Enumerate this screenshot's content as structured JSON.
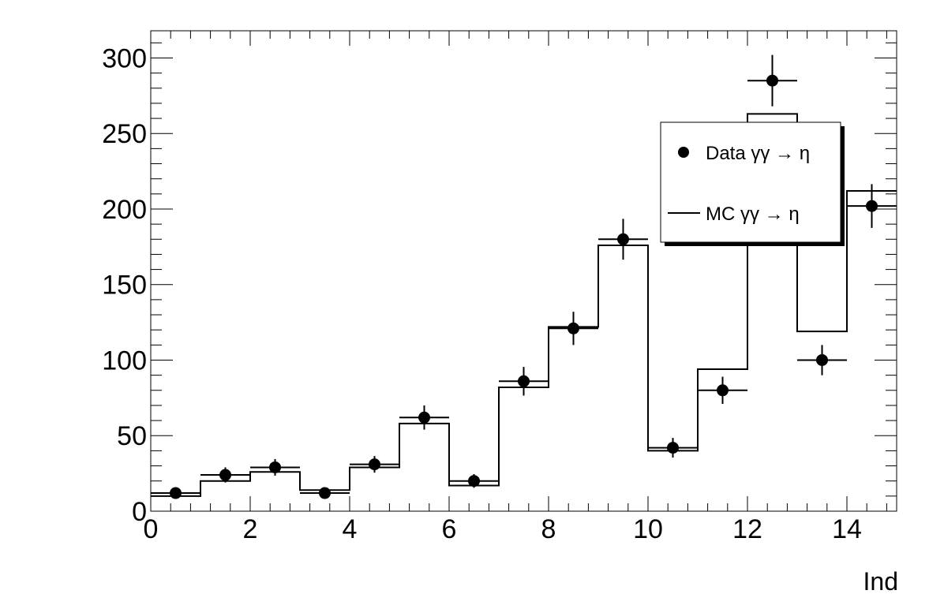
{
  "chart_data": {
    "type": "scatter",
    "title": "",
    "xlabel": "Ind",
    "ylabel": "",
    "xlim": [
      0,
      15
    ],
    "ylim": [
      0,
      318
    ],
    "grid": false,
    "legend_position": "top-right",
    "x_ticks": [
      "0",
      "2",
      "4",
      "6",
      "8",
      "10",
      "12",
      "14"
    ],
    "y_ticks": [
      "0",
      "50",
      "100",
      "150",
      "200",
      "250",
      "300"
    ],
    "series": [
      {
        "name": "Data γγ → η",
        "style": "points-with-errors",
        "x": [
          0.5,
          1.5,
          2.5,
          3.5,
          4.5,
          5.5,
          6.5,
          7.5,
          8.5,
          9.5,
          10.5,
          11.5,
          12.5,
          13.5,
          14.5
        ],
        "values": [
          12,
          24,
          29,
          12,
          31,
          62,
          20,
          86,
          121,
          180,
          42,
          80,
          285,
          100,
          202
        ],
        "errors": [
          3.5,
          5,
          5.5,
          3.5,
          5.5,
          8,
          4.5,
          9.5,
          11,
          13.5,
          6.5,
          9,
          17,
          10,
          14.5
        ]
      },
      {
        "name": "MC γγ → η",
        "style": "step-histogram",
        "bin_edges": [
          0,
          1,
          2,
          3,
          4,
          5,
          6,
          7,
          8,
          9,
          10,
          11,
          12,
          13,
          14,
          15
        ],
        "values": [
          10,
          20,
          26,
          14,
          29,
          58,
          17,
          82,
          122,
          176,
          40,
          94,
          263,
          119,
          212
        ]
      }
    ]
  }
}
